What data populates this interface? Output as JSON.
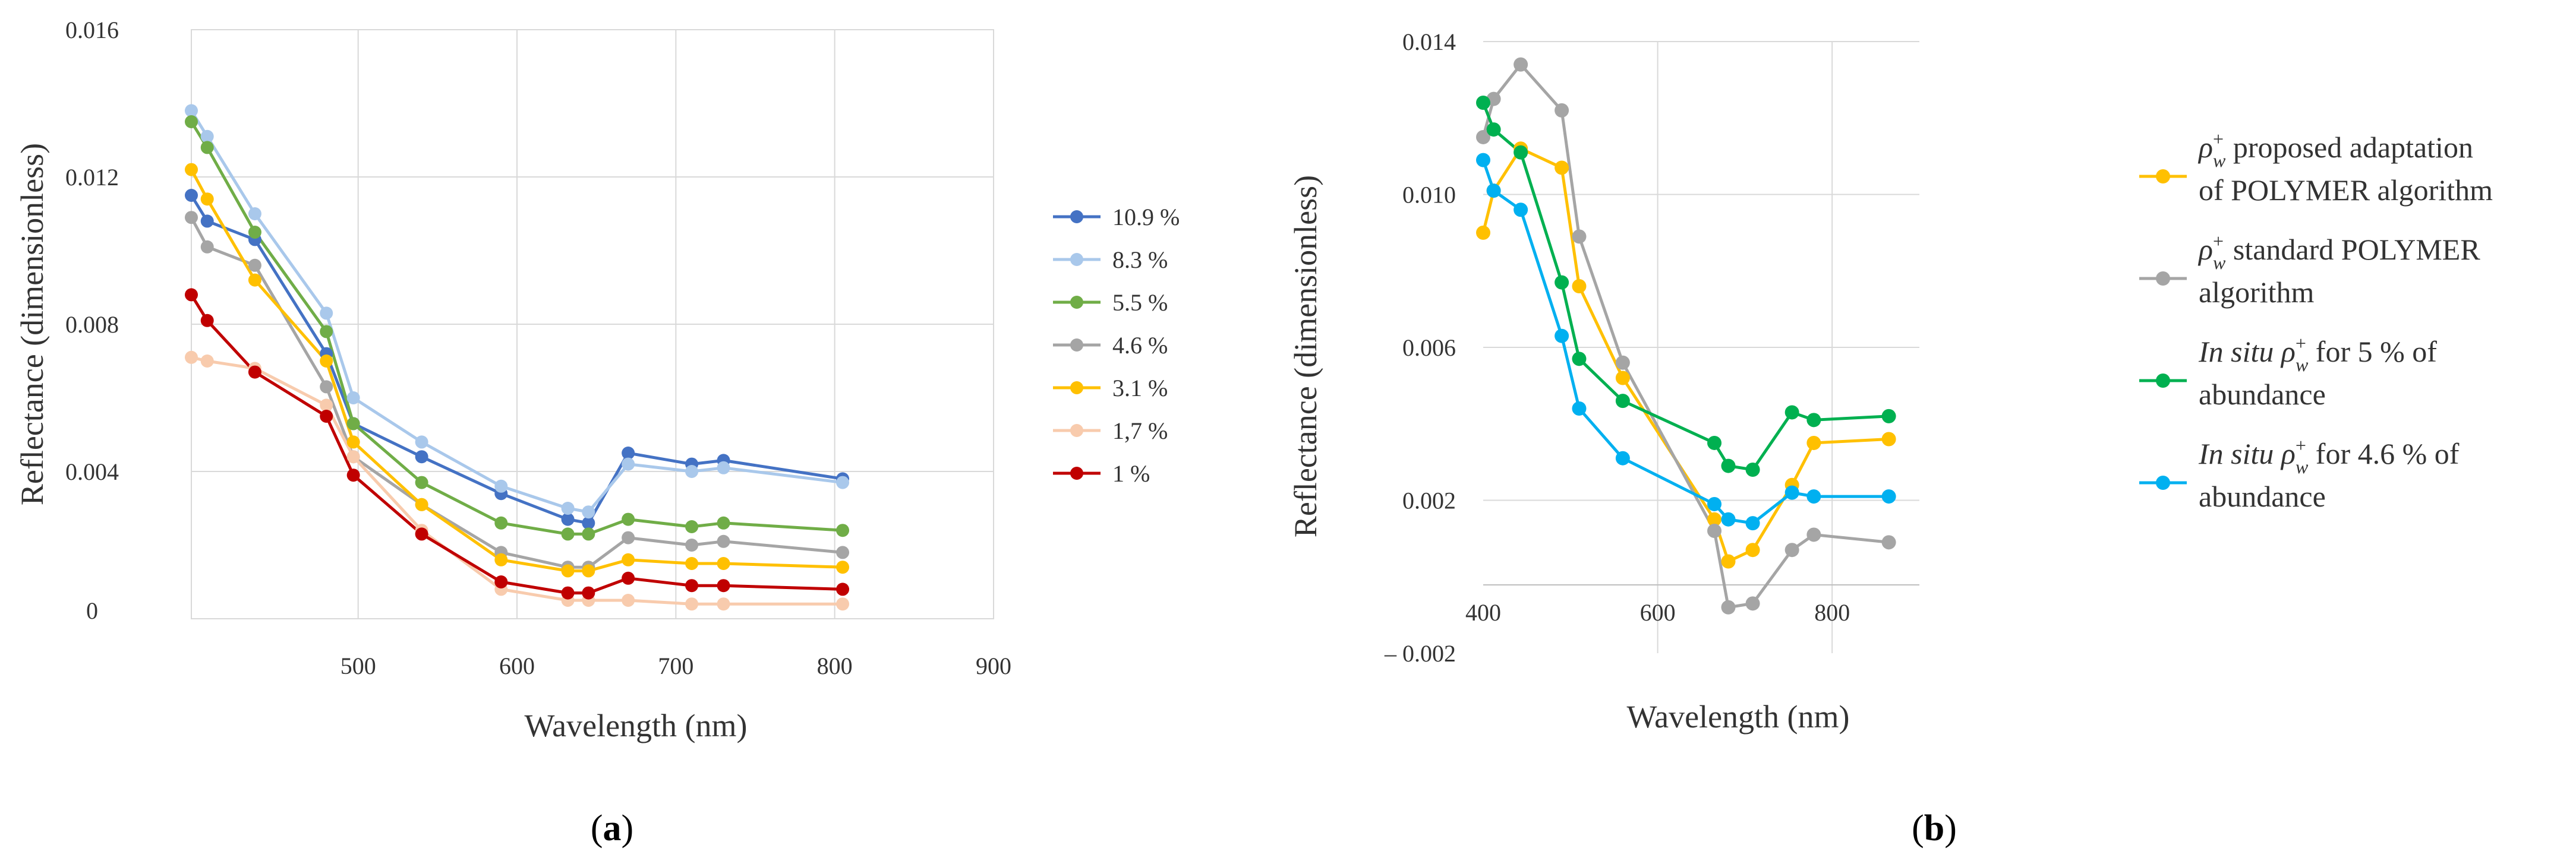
{
  "chart_data": [
    {
      "type": "line",
      "panel_label": "(a)",
      "panel_letter": "a",
      "xlabel": "Wavelength (nm)",
      "ylabel": "Reflectance (dimensionless)",
      "xlim": [
        395,
        900
      ],
      "ylim": [
        0,
        0.016
      ],
      "xticks": [
        500,
        600,
        700,
        800,
        900
      ],
      "xtick_labels": [
        "500",
        "600",
        "700",
        "800",
        "900"
      ],
      "yticks": [
        0,
        0.004,
        0.008,
        0.012,
        0.016
      ],
      "ytick_labels": [
        "0",
        "0.004",
        "0.008",
        "0.012",
        "0.016"
      ],
      "grid": true,
      "legend_position": "right",
      "x": [
        395,
        405,
        435,
        480,
        497,
        540,
        590,
        632,
        645,
        670,
        710,
        730,
        805
      ],
      "series": [
        {
          "name": "10.9 %",
          "color": "#4472C4",
          "values": [
            0.0115,
            0.0108,
            0.0103,
            0.0072,
            0.0053,
            0.0044,
            0.0034,
            0.0027,
            0.0026,
            0.0045,
            0.0042,
            0.0043,
            0.0038
          ]
        },
        {
          "name": "8.3 %",
          "color": "#A9C8EB",
          "values": [
            0.0138,
            0.0131,
            0.011,
            0.0083,
            0.006,
            0.0048,
            0.0036,
            0.003,
            0.0029,
            0.0042,
            0.004,
            0.0041,
            0.0037
          ]
        },
        {
          "name": "5.5 %",
          "color": "#70AD47",
          "values": [
            0.0135,
            0.0128,
            0.0105,
            0.0078,
            0.0053,
            0.0037,
            0.0026,
            0.0023,
            0.0023,
            0.0027,
            0.0025,
            0.0026,
            0.0024
          ]
        },
        {
          "name": "4.6 %",
          "color": "#A5A5A5",
          "values": [
            0.0109,
            0.0101,
            0.0096,
            0.0063,
            0.0044,
            0.0031,
            0.0018,
            0.0014,
            0.0014,
            0.0022,
            0.002,
            0.0021,
            0.0018
          ]
        },
        {
          "name": "3.1 %",
          "color": "#FFC000",
          "values": [
            0.0122,
            0.0114,
            0.0092,
            0.007,
            0.0048,
            0.0031,
            0.0016,
            0.0013,
            0.0013,
            0.0016,
            0.0015,
            0.0015,
            0.0014
          ]
        },
        {
          "name": "1,7 %",
          "color": "#F8CBAD",
          "values": [
            0.0071,
            0.007,
            0.0068,
            0.0058,
            0.0044,
            0.0024,
            0.0008,
            0.0005,
            0.0005,
            0.0005,
            0.0004,
            0.0004,
            0.0004
          ]
        },
        {
          "name": "1 %",
          "color": "#C00000",
          "values": [
            0.0088,
            0.0081,
            0.0067,
            0.0055,
            0.0039,
            0.0023,
            0.001,
            0.0007,
            0.0007,
            0.0011,
            0.0009,
            0.0009,
            0.0008
          ]
        }
      ]
    },
    {
      "type": "line",
      "panel_label": "(b)",
      "panel_letter": "b",
      "xlabel": "Wavelength (nm)",
      "ylabel": "Reflectance (dimensionless)",
      "xlim": [
        400,
        900
      ],
      "ylim": [
        -0.002,
        0.014
      ],
      "xticks": [
        400,
        600,
        800
      ],
      "xtick_labels": [
        "400",
        "600",
        "800"
      ],
      "yticks": [
        -0.002,
        0.002,
        0.006,
        0.01,
        0.014
      ],
      "ytick_labels": [
        "– 0.002",
        "0.002",
        "0.006",
        "0.010",
        "0.014"
      ],
      "grid": true,
      "legend_position": "right",
      "series": [
        {
          "name": "proposed adaptation of POLYMER algorithm",
          "legend_lines": [
            "proposed adaptation",
            "of POLYMER algorithm"
          ],
          "legend_prefix": "",
          "color": "#FFC000",
          "x": [
            400,
            412,
            443,
            490,
            510,
            560,
            665,
            681,
            709,
            754,
            779,
            865
          ],
          "values": [
            0.009,
            0.0101,
            0.0112,
            0.0107,
            0.0076,
            0.0052,
            0.0015,
            0.0004,
            0.0007,
            0.0024,
            0.0035,
            0.0036
          ]
        },
        {
          "name": "standard POLYMER algorithm",
          "legend_lines": [
            "standard POLYMER",
            "algorithm"
          ],
          "legend_prefix": "",
          "color": "#A5A5A5",
          "x": [
            400,
            412,
            443,
            490,
            510,
            560,
            665,
            681,
            709,
            754,
            779,
            865
          ],
          "values": [
            0.0115,
            0.0125,
            0.0134,
            0.0122,
            0.0089,
            0.0056,
            0.0012,
            -0.0008,
            -0.0007,
            0.0007,
            0.0011,
            0.0009
          ]
        },
        {
          "name": "In situ for 5 % of abundance",
          "legend_lines": [
            "for 5 % of",
            "abundance"
          ],
          "legend_prefix": "In situ",
          "color": "#00B050",
          "x": [
            400,
            412,
            443,
            490,
            510,
            560,
            665,
            681,
            709,
            754,
            779,
            865
          ],
          "values": [
            0.0124,
            0.0117,
            0.0111,
            0.0077,
            0.0057,
            0.0046,
            0.0035,
            0.0029,
            0.0028,
            0.0043,
            0.0041,
            0.0042
          ]
        },
        {
          "name": "In situ for 4.6 % of abundance",
          "legend_lines": [
            "for 4.6 % of",
            "abundance"
          ],
          "legend_prefix": "In situ",
          "color": "#00B0F0",
          "x": [
            400,
            412,
            443,
            490,
            510,
            560,
            665,
            681,
            709,
            754,
            779,
            865
          ],
          "values": [
            0.0109,
            0.0101,
            0.0096,
            0.0063,
            0.0044,
            0.0031,
            0.0019,
            0.0015,
            0.0014,
            0.0022,
            0.0021,
            0.0021
          ]
        }
      ]
    }
  ]
}
